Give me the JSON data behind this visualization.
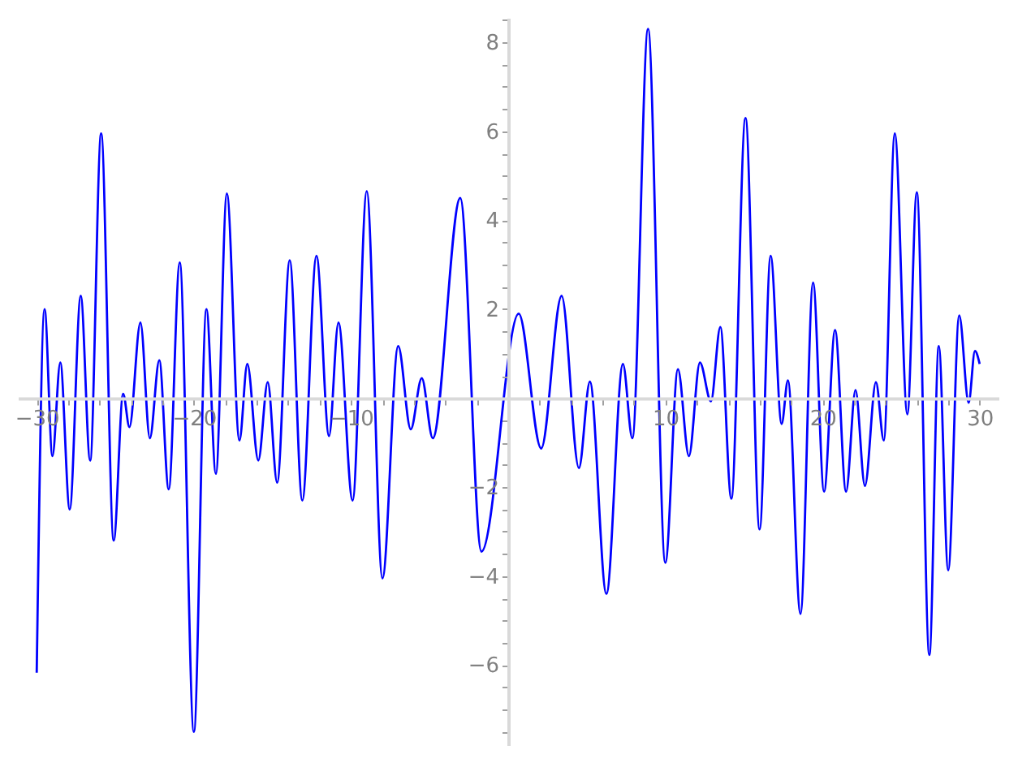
{
  "chart_data": {
    "type": "line",
    "xlim": [
      -31.2,
      31.2
    ],
    "ylim": [
      -7.8,
      8.55
    ],
    "xticks": [
      -30,
      {
        "value": -28,
        "label": null
      },
      {
        "value": -26,
        "label": null
      },
      {
        "value": -24,
        "label": null
      },
      {
        "value": -22,
        "label": null
      },
      -20,
      {
        "value": -18,
        "label": null
      },
      {
        "value": -16,
        "label": null
      },
      {
        "value": -14,
        "label": null
      },
      {
        "value": -12,
        "label": null
      },
      -10,
      {
        "value": -8,
        "label": null
      },
      {
        "value": -6,
        "label": null
      },
      {
        "value": -4,
        "label": null
      },
      {
        "value": -2,
        "label": null
      },
      {
        "value": 2,
        "label": null
      },
      {
        "value": 4,
        "label": null
      },
      {
        "value": 6,
        "label": null
      },
      {
        "value": 8,
        "label": null
      },
      10,
      {
        "value": 12,
        "label": null
      },
      {
        "value": 14,
        "label": null
      },
      {
        "value": 16,
        "label": null
      },
      {
        "value": 18,
        "label": null
      },
      20,
      {
        "value": 22,
        "label": null
      },
      {
        "value": 24,
        "label": null
      },
      {
        "value": 26,
        "label": null
      },
      {
        "value": 28,
        "label": null
      },
      30
    ],
    "yticks": [
      {
        "value": -7.5,
        "label": null
      },
      {
        "value": -7,
        "label": null
      },
      {
        "value": -6.5,
        "label": null
      },
      -6,
      {
        "value": -5.5,
        "label": null
      },
      {
        "value": -5,
        "label": null
      },
      {
        "value": -4.5,
        "label": null
      },
      -4,
      {
        "value": -3.5,
        "label": null
      },
      {
        "value": -3,
        "label": null
      },
      {
        "value": -2.5,
        "label": null
      },
      -2,
      {
        "value": -1.5,
        "label": null
      },
      {
        "value": -1,
        "label": null
      },
      {
        "value": -0.5,
        "label": null
      },
      {
        "value": 0.5,
        "label": null
      },
      {
        "value": 1,
        "label": null
      },
      {
        "value": 1.5,
        "label": null
      },
      2,
      {
        "value": 2.5,
        "label": null
      },
      {
        "value": 3,
        "label": null
      },
      {
        "value": 3.5,
        "label": null
      },
      4,
      {
        "value": 4.5,
        "label": null
      },
      {
        "value": 5,
        "label": null
      },
      {
        "value": 5.5,
        "label": null
      },
      6,
      {
        "value": 6.5,
        "label": null
      },
      {
        "value": 7,
        "label": null
      },
      {
        "value": 7.5,
        "label": null
      },
      8,
      {
        "value": 8.5,
        "label": null
      }
    ],
    "grid": false,
    "marker": "none",
    "line_style": "solid",
    "series": [
      {
        "color": "#0000ff",
        "x": [
          -30,
          -29.5,
          -29.0,
          -28.5,
          -27.9,
          -27.2,
          -26.6,
          -25.9,
          -25.1,
          -24.5,
          -24.1,
          -23.4,
          -22.8,
          -22.2,
          -21.6,
          -20.9,
          -20.0,
          -19.2,
          -18.6,
          -17.9,
          -17.1,
          -16.6,
          -15.9,
          -15.3,
          -14.7,
          -13.9,
          -13.1,
          -12.2,
          -11.4,
          -10.8,
          -9.9,
          -9.0,
          -8.0,
          -7.0,
          -6.2,
          -5.5,
          -4.8,
          -3.05,
          -1.7,
          0.67,
          2.1,
          3.4,
          4.5,
          5.2,
          6.25,
          7.3,
          7.9,
          8.9,
          10.0,
          10.8,
          11.5,
          12.2,
          12.9,
          13.5,
          14.2,
          15.1,
          16.0,
          16.7,
          17.4,
          17.8,
          18.6,
          19.4,
          20.1,
          20.8,
          21.5,
          22.1,
          22.7,
          23.4,
          23.9,
          24.6,
          25.4,
          26.0,
          26.8,
          27.4,
          28.0,
          28.7,
          29.3,
          29.7,
          30.0
        ],
        "values": [
          -6.17,
          2.0,
          -1.3,
          0.8,
          -2.5,
          2.3,
          -1.4,
          5.95,
          -3.2,
          0.1,
          -0.65,
          1.7,
          -0.9,
          0.85,
          -2.05,
          3.05,
          -7.5,
          2.0,
          -1.7,
          4.6,
          -0.95,
          0.77,
          -1.4,
          0.36,
          -1.9,
          3.1,
          -2.3,
          3.2,
          -0.85,
          1.7,
          -2.3,
          4.65,
          -4.05,
          1.17,
          -0.7,
          0.45,
          -0.9,
          4.5,
          -3.45,
          1.9,
          -1.13,
          2.3,
          -1.57,
          0.37,
          -4.4,
          0.77,
          -0.9,
          8.3,
          -3.7,
          0.65,
          -1.3,
          0.8,
          -0.07,
          1.6,
          -2.26,
          6.3,
          -2.95,
          3.2,
          -0.58,
          0.4,
          -4.85,
          2.6,
          -2.1,
          1.53,
          -2.1,
          0.18,
          -1.97,
          0.36,
          -0.95,
          5.95,
          -0.36,
          4.63,
          -5.77,
          1.17,
          -3.87,
          1.86,
          -0.1,
          1.06,
          0.77
        ]
      }
    ]
  }
}
